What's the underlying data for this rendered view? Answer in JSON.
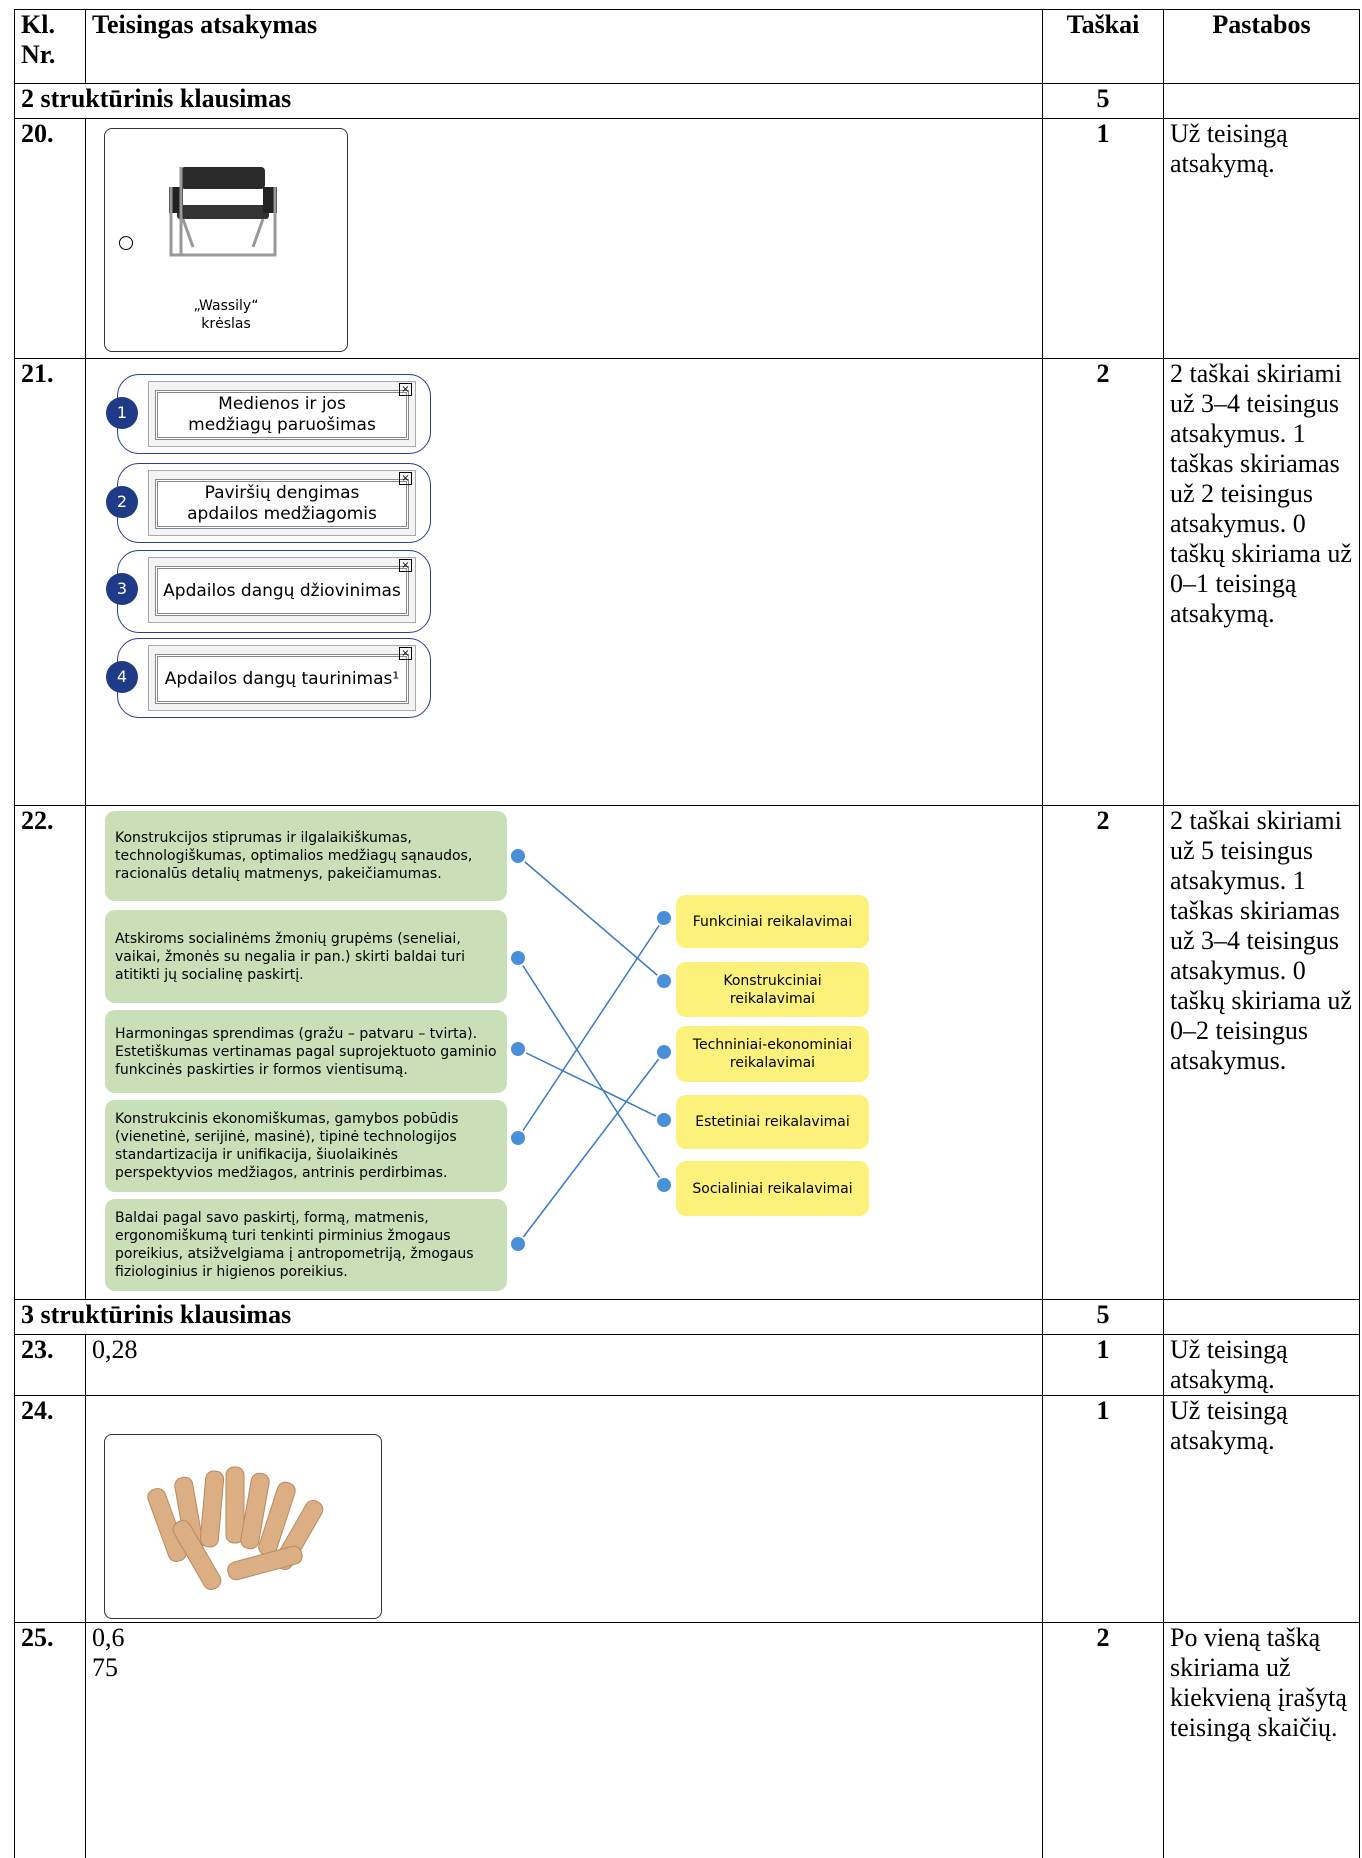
{
  "header": {
    "number": "Kl. Nr.",
    "answer": "Teisingas atsakymas",
    "points": "Taškai",
    "notes": "Pastabos"
  },
  "rows": [
    {
      "section": "2 struktūrinis klausimas",
      "points": "5"
    },
    {
      "number": "20.",
      "answer": {
        "caption": [
          "„Wassily“",
          "krėslas"
        ]
      },
      "points": "1",
      "notes": "Už teisingą atsakymą."
    },
    {
      "number": "21.",
      "answer": {
        "items": [
          {
            "index": "1",
            "label": [
              "Medienos ir jos",
              "medžiagų paruošimas"
            ]
          },
          {
            "index": "2",
            "label": [
              "Paviršių dengimas",
              "apdailos medžiagomis"
            ]
          },
          {
            "index": "3",
            "label": [
              "Apdailos dangų džiovinimas"
            ]
          },
          {
            "index": "4",
            "label": [
              "Apdailos dangų taurinimas¹"
            ]
          }
        ]
      },
      "points": "2",
      "notes": "2 taškai skiriami už 3–4 teisingus atsakymus. 1 taškas skiriamas už 2 teisingus atsakymus. 0 taškų skiriama už 0–1 teisingą atsakymą."
    },
    {
      "number": "22.",
      "answer": {
        "left": [
          "Konstrukcijos stiprumas ir ilgalaikiškumas, technologiškumas, optimalios medžiagų sąnaudos, racionalūs detalių matmenys, pakeičiamumas.",
          "Atskiroms socialinėms žmonių grupėms (seneliai, vaikai, žmonės su negalia ir pan.) skirti baldai turi atitikti jų socialinę paskirtį.",
          "Harmoningas sprendimas (gražu – patvaru – tvirta). Estetiškumas vertinamas pagal suprojektuoto gaminio funkcinės paskirties ir formos vientisumą.",
          "Konstrukcinis ekonomiškumas, gamybos pobūdis (vienetinė, serijinė, masinė), tipinė technologijos standartizacija ir unifikacija, šiuolaikinės perspektyvios medžiagos, antrinis perdirbimas.",
          "Baldai pagal savo paskirtį, formą, matmenis, ergonomiškumą turi tenkinti pirminius žmogaus poreikius, atsižvelgiama į antropometriją, žmogaus fiziologinius ir higienos poreikius."
        ],
        "right": [
          [
            "Funkciniai reikalavimai"
          ],
          [
            "Konstrukciniai",
            "reikalavimai"
          ],
          [
            "Techniniai-ekonominiai",
            "reikalavimai"
          ],
          [
            "Estetiniai reikalavimai"
          ],
          [
            "Socialiniai reikalavimai"
          ]
        ]
      },
      "points": "2",
      "notes": "2 taškai skiriami už 5 teisingus atsakymus. 1 taškas skiriamas už 3–4 teisingus atsakymus. 0 taškų skiriama už 0–2 teisingus atsakymus."
    },
    {
      "section": "3 struktūrinis klausimas",
      "points": "5"
    },
    {
      "number": "23.",
      "answer": "0,28",
      "points": "1",
      "notes": "Už teisingą atsakymą."
    },
    {
      "number": "24.",
      "points": "1",
      "notes": "Už teisingą atsakymą."
    },
    {
      "number": "25.",
      "answer": [
        "0,6",
        "75"
      ],
      "points": "2",
      "notes": "Po vieną tašką skiriama už kiekvieną įrašytą teisingą skaičių."
    }
  ]
}
